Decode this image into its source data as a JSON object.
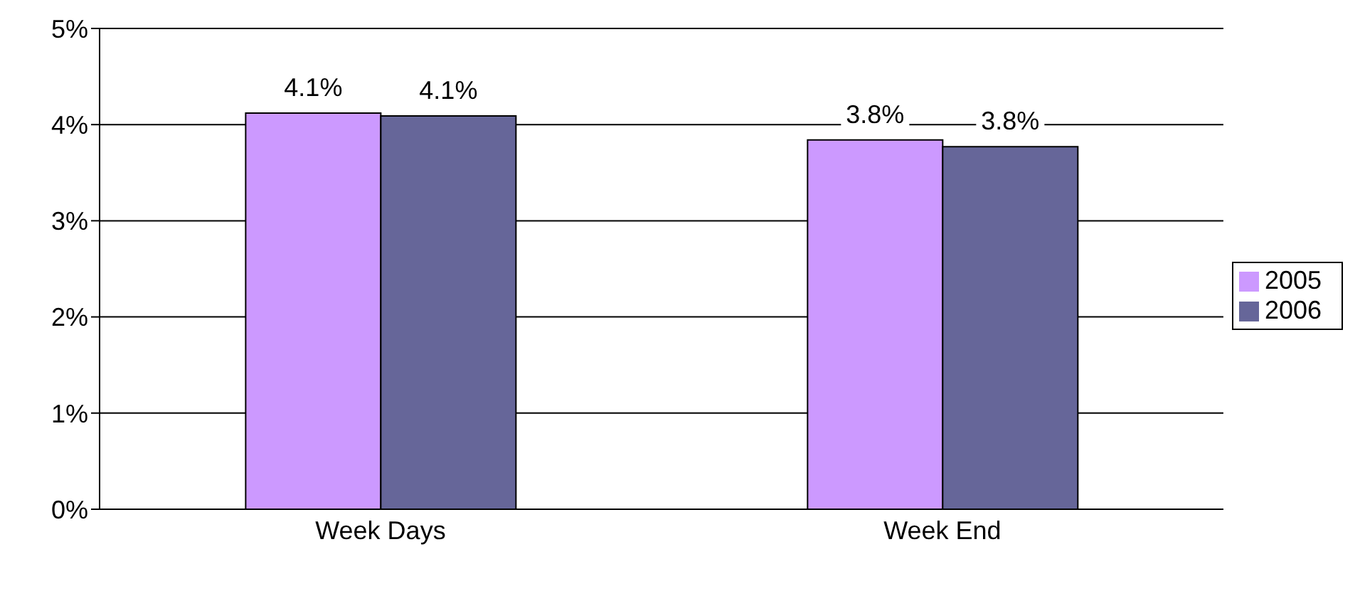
{
  "chart_data": {
    "type": "bar",
    "categories": [
      "Week Days",
      "Week End"
    ],
    "series": [
      {
        "name": "2005",
        "color": "#cc99ff",
        "values": [
          4.12,
          3.84
        ],
        "value_labels": [
          "4.1%",
          "3.8%"
        ]
      },
      {
        "name": "2006",
        "color": "#666699",
        "values": [
          4.09,
          3.77
        ],
        "value_labels": [
          "4.1%",
          "3.8%"
        ]
      }
    ],
    "ylim": [
      0,
      5
    ],
    "yticks": [
      {
        "value": 0,
        "label": "0%"
      },
      {
        "value": 1,
        "label": "1%"
      },
      {
        "value": 2,
        "label": "2%"
      },
      {
        "value": 3,
        "label": "3%"
      },
      {
        "value": 4,
        "label": "4%"
      },
      {
        "value": 5,
        "label": "5%"
      }
    ],
    "grid": "y",
    "legend": "right"
  }
}
